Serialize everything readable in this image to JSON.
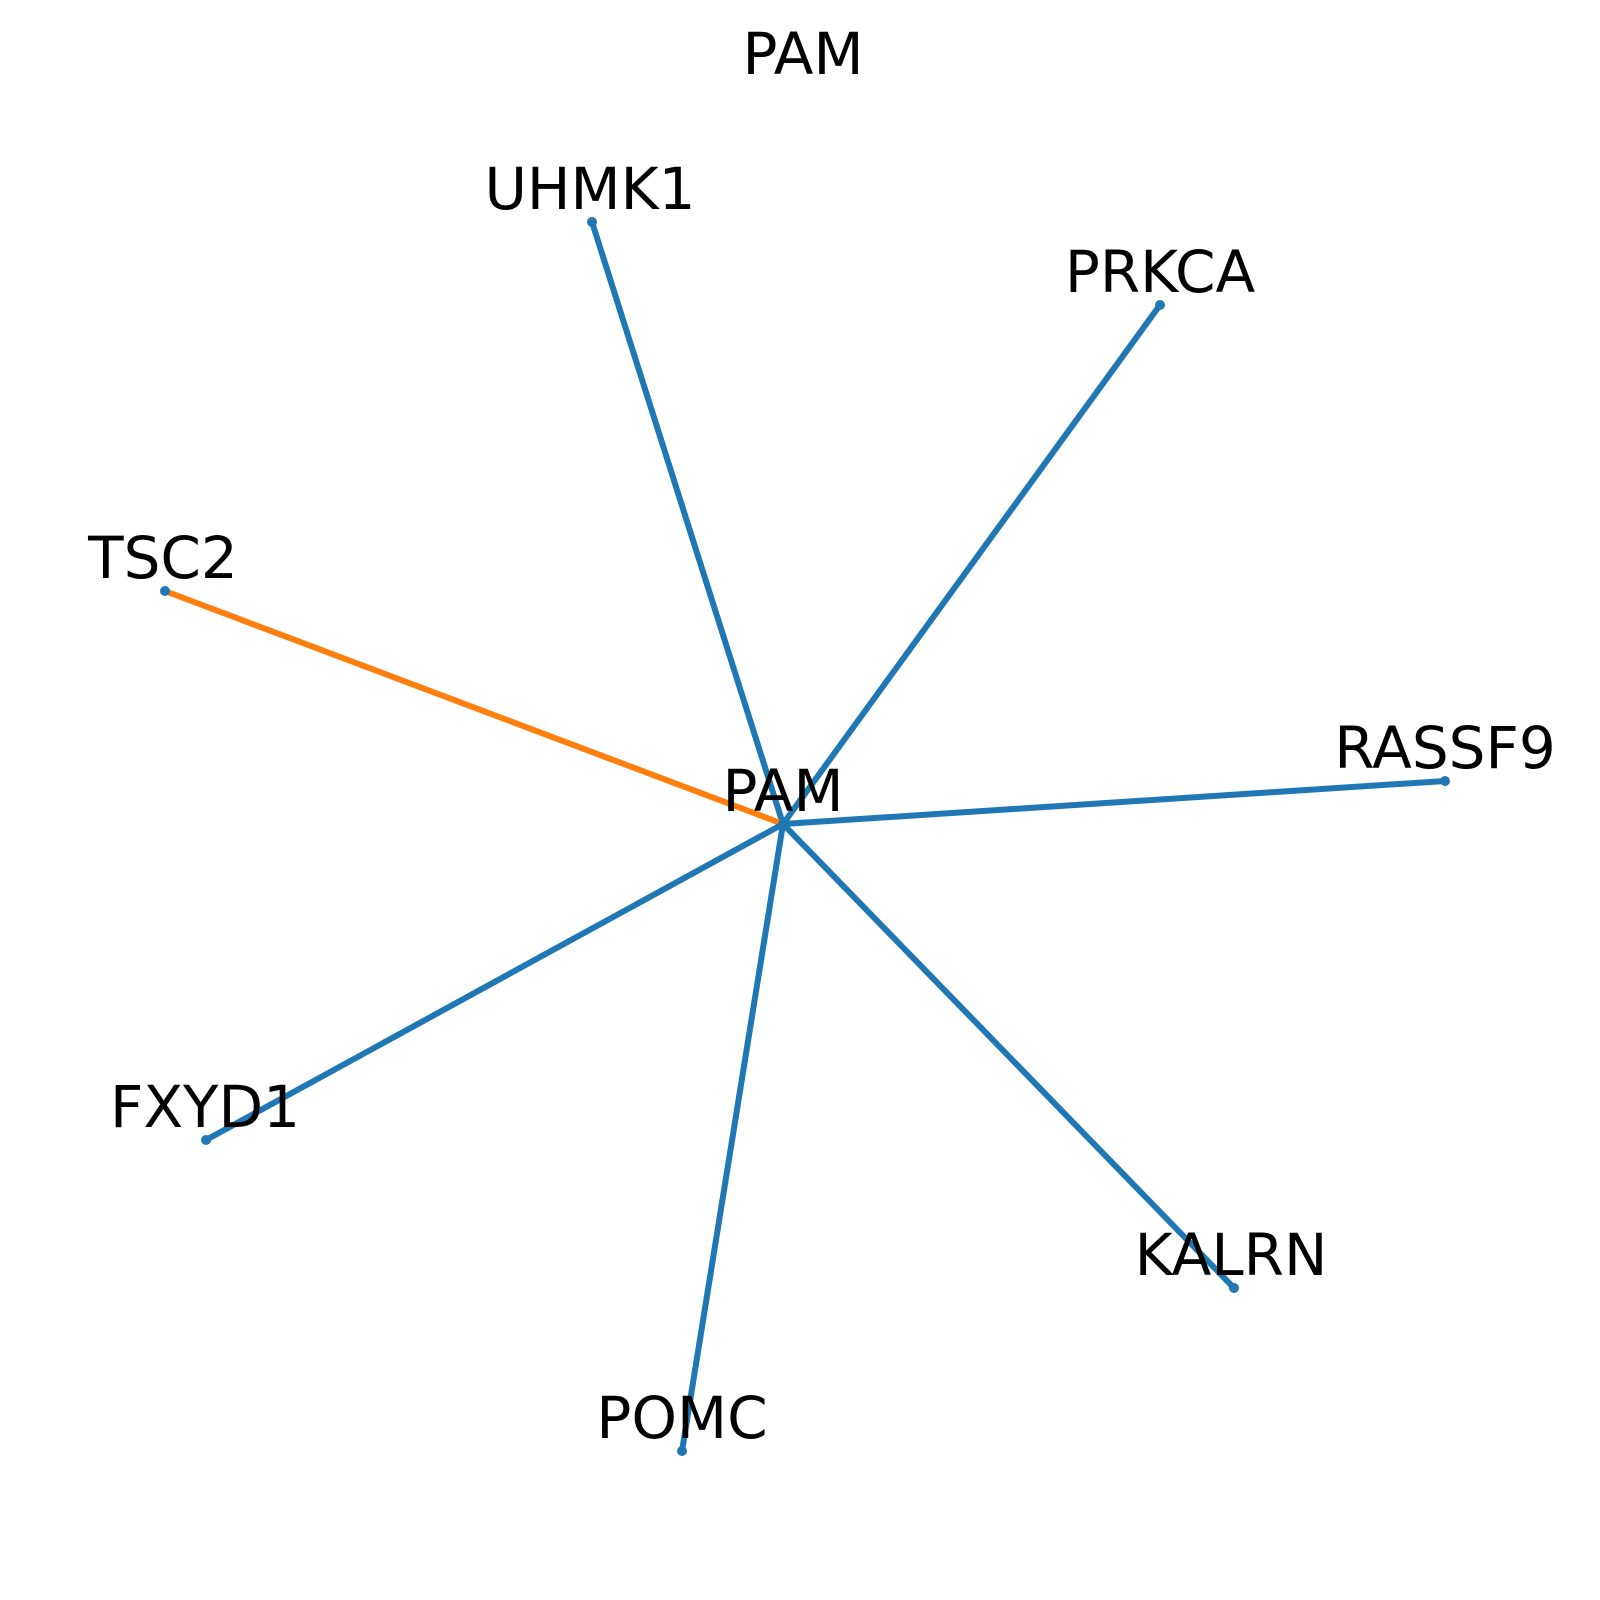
{
  "title": "PAM",
  "center": {
    "id": "PAM",
    "label": "PAM",
    "color": "#1f77b4"
  },
  "nodes": [
    {
      "id": "UHMK1",
      "label": "UHMK1",
      "edge_color": "#1f77b4"
    },
    {
      "id": "PRKCA",
      "label": "PRKCA",
      "edge_color": "#1f77b4"
    },
    {
      "id": "TSC2",
      "label": "TSC2",
      "edge_color": "#ff7f0e"
    },
    {
      "id": "RASSF9",
      "label": "RASSF9",
      "edge_color": "#1f77b4"
    },
    {
      "id": "FXYD1",
      "label": "FXYD1",
      "edge_color": "#1f77b4"
    },
    {
      "id": "KALRN",
      "label": "KALRN",
      "edge_color": "#1f77b4"
    },
    {
      "id": "POMC",
      "label": "POMC",
      "edge_color": "#1f77b4"
    }
  ],
  "node_color": "#1f77b4"
}
